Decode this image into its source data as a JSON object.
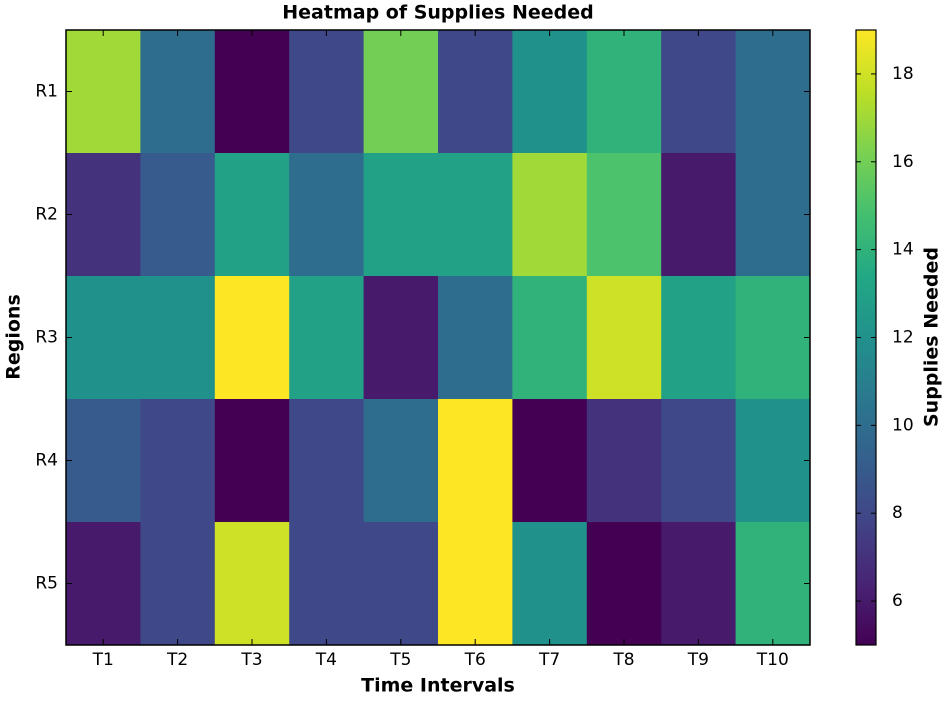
{
  "chart_data": {
    "type": "heatmap",
    "title": "Heatmap of Supplies Needed",
    "x_label": "Time Intervals",
    "y_label": "Regions",
    "categories": [
      "T1",
      "T2",
      "T3",
      "T4",
      "T5",
      "T6",
      "T7",
      "T8",
      "T9",
      "T10"
    ],
    "y_categories": [
      "R1",
      "R2",
      "R3",
      "R4",
      "R5"
    ],
    "values": [
      [
        17,
        10,
        5,
        8,
        16,
        8,
        12,
        14,
        8,
        10
      ],
      [
        7,
        9,
        13,
        10,
        13,
        13,
        17,
        15,
        6,
        10
      ],
      [
        12,
        12,
        19,
        13,
        6,
        10,
        14,
        18,
        13,
        14
      ],
      [
        9,
        8,
        5,
        8,
        10,
        19,
        5,
        7,
        8,
        12
      ],
      [
        6,
        8,
        18,
        8,
        8,
        19,
        12,
        5,
        6,
        14
      ]
    ],
    "colormap": "viridis",
    "clim": [
      5,
      19
    ],
    "colorbar_label": "Supplies Needed",
    "colorbar_ticks": [
      6,
      8,
      10,
      12,
      14,
      16,
      18
    ]
  }
}
